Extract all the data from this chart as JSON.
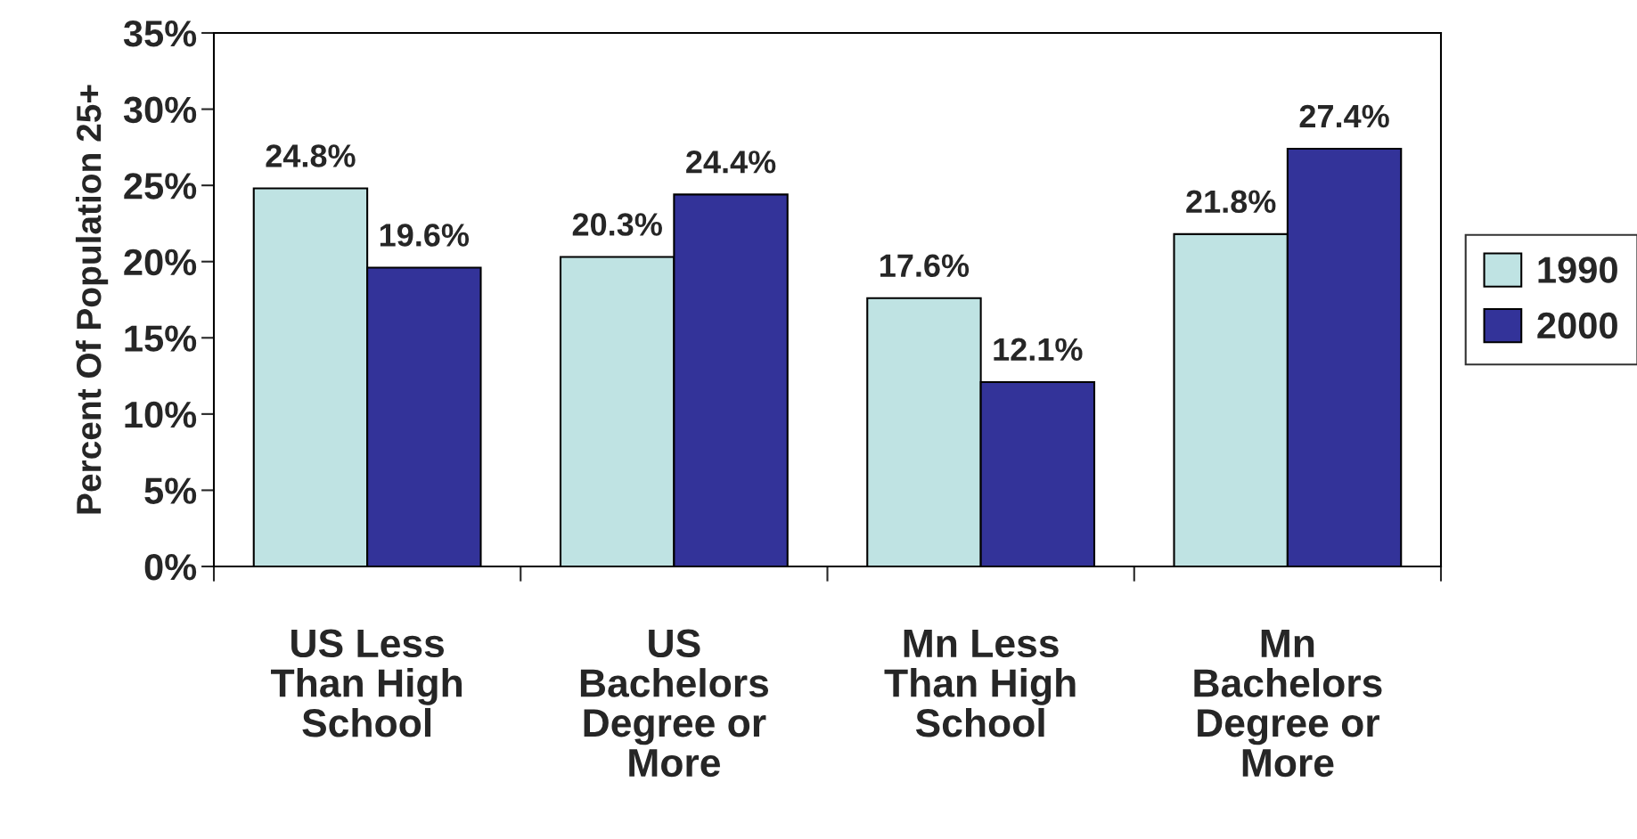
{
  "chart_data": {
    "type": "bar",
    "ylabel": "Percent Of Population 25+",
    "categories": [
      "US Less\nThan High\nSchool",
      "US\nBachelors\nDegree or\nMore",
      "Mn Less\nThan High\nSchool",
      "Mn\nBachelors\nDegree or\nMore"
    ],
    "series": [
      {
        "name": "1990",
        "color": "#bfe3e3",
        "values": [
          24.8,
          20.3,
          17.6,
          21.8
        ],
        "value_labels": [
          "24.8%",
          "20.3%",
          "17.6%",
          "21.8%"
        ]
      },
      {
        "name": "2000",
        "color": "#333399",
        "values": [
          19.6,
          24.4,
          12.1,
          27.4
        ],
        "value_labels": [
          "19.6%",
          "24.4%",
          "12.1%",
          "27.4%"
        ]
      }
    ],
    "ylim": [
      0,
      35
    ],
    "yticks": [
      {
        "value": 0,
        "label": "0%"
      },
      {
        "value": 5,
        "label": "5%"
      },
      {
        "value": 10,
        "label": "10%"
      },
      {
        "value": 15,
        "label": "15%"
      },
      {
        "value": 20,
        "label": "20%"
      },
      {
        "value": 25,
        "label": "25%"
      },
      {
        "value": 30,
        "label": "30%"
      },
      {
        "value": 35,
        "label": "35%"
      }
    ],
    "grid": false,
    "legend": "right"
  }
}
